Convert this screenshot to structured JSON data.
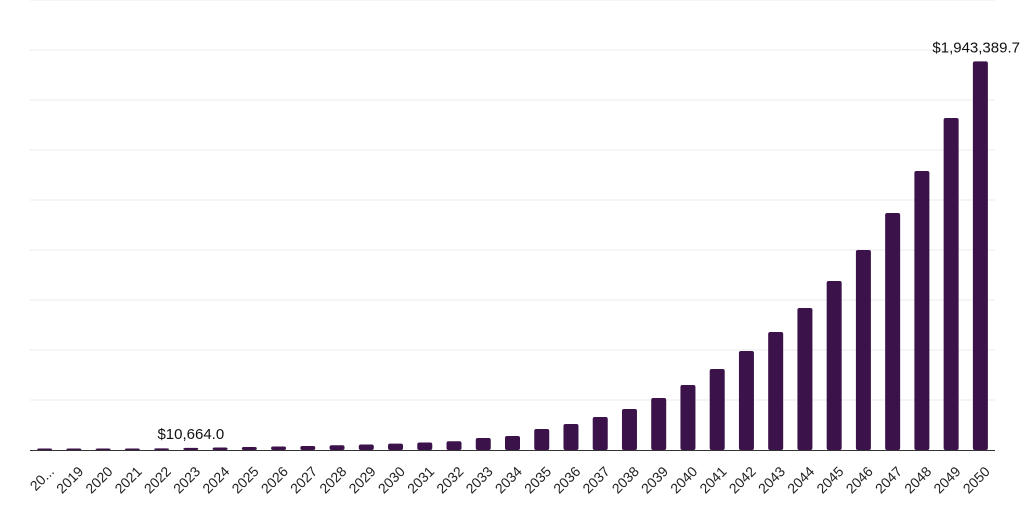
{
  "chart_data": {
    "type": "bar",
    "categories": [
      "20...",
      "2019",
      "2020",
      "2021",
      "2022",
      "2023",
      "2024",
      "2025",
      "2026",
      "2027",
      "2028",
      "2029",
      "2030",
      "2031",
      "2032",
      "2033",
      "2034",
      "2035",
      "2036",
      "2037",
      "2038",
      "2039",
      "2040",
      "2041",
      "2042",
      "2043",
      "2044",
      "2045",
      "2046",
      "2047",
      "2048",
      "2049",
      "2050"
    ],
    "values": [
      3500,
      4500,
      5500,
      6700,
      8200,
      10664.0,
      12500,
      14700,
      17200,
      20000,
      23500,
      27500,
      32000,
      37500,
      44000,
      60000,
      70000,
      105000,
      130000,
      165000,
      205000,
      260000,
      325000,
      405000,
      495000,
      590000,
      710000,
      845000,
      1000000,
      1185000,
      1395000,
      1660000,
      1943389.7
    ],
    "data_labels": [
      {
        "category": "2023",
        "text": "$10,664.0"
      },
      {
        "category": "2050",
        "text": "$1,943,389.7"
      }
    ],
    "ylim": [
      0,
      2250000
    ],
    "grid": true,
    "gridline_count": 9,
    "bar_color": "#3b1249",
    "grid_color": "#ebebeb",
    "axis_color": "#333333"
  }
}
